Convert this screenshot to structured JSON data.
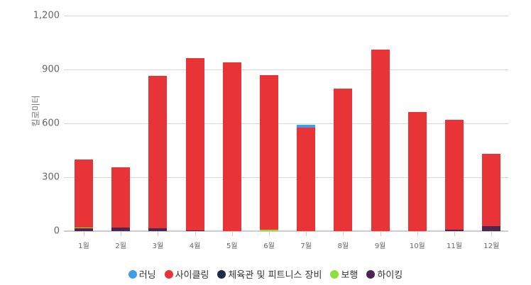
{
  "chart_data": {
    "type": "bar",
    "stacked": true,
    "title": "",
    "xlabel": "",
    "ylabel": "킬로미터",
    "ylim": [
      0,
      1200
    ],
    "yticks": [
      0,
      300,
      600,
      900,
      1200
    ],
    "ytick_labels": [
      "0",
      "300",
      "600",
      "900",
      "1,200"
    ],
    "grid": true,
    "legend_position": "bottom",
    "categories": [
      "1월",
      "2월",
      "3월",
      "4월",
      "5월",
      "6월",
      "7월",
      "8월",
      "9월",
      "10월",
      "11월",
      "12월"
    ],
    "series": [
      {
        "name": "하이킹",
        "color": "#4b2651",
        "values": [
          14,
          18,
          15,
          4,
          0,
          0,
          0,
          0,
          0,
          0,
          8,
          28
        ]
      },
      {
        "name": "보행",
        "color": "#8de03c",
        "values": [
          6,
          0,
          0,
          0,
          0,
          8,
          0,
          0,
          0,
          0,
          0,
          0
        ]
      },
      {
        "name": "체육관 및 피트니스 장비",
        "color": "#1a2e47",
        "values": [
          0,
          0,
          0,
          0,
          0,
          0,
          0,
          0,
          0,
          0,
          0,
          0
        ]
      },
      {
        "name": "사이클링",
        "color": "#e83437",
        "values": [
          378,
          337,
          850,
          959,
          940,
          860,
          575,
          793,
          1010,
          663,
          612,
          402
        ]
      },
      {
        "name": "러닝",
        "color": "#419ee5",
        "values": [
          0,
          0,
          0,
          0,
          0,
          0,
          17,
          0,
          0,
          0,
          0,
          0
        ]
      }
    ]
  },
  "legend": [
    {
      "label": "러닝",
      "color": "#419ee5"
    },
    {
      "label": "사이클링",
      "color": "#e83437"
    },
    {
      "label": "체육관 및 피트니스 장비",
      "color": "#1a2e47"
    },
    {
      "label": "보행",
      "color": "#8de03c"
    },
    {
      "label": "하이킹",
      "color": "#4b2651"
    }
  ]
}
